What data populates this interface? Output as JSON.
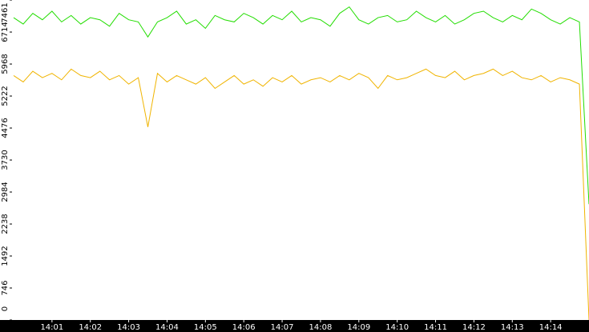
{
  "chart_data": {
    "type": "line",
    "x": [
      840,
      840.25,
      840.5,
      840.75,
      841,
      841.25,
      841.5,
      841.75,
      842,
      842.25,
      842.5,
      842.75,
      843,
      843.25,
      843.5,
      843.75,
      844,
      844.25,
      844.5,
      844.75,
      845,
      845.25,
      845.5,
      845.75,
      846,
      846.25,
      846.5,
      846.75,
      847,
      847.25,
      847.5,
      847.75,
      848,
      848.25,
      848.5,
      848.75,
      849,
      849.25,
      849.5,
      849.75,
      850,
      850.25,
      850.5,
      850.75,
      851,
      851.25,
      851.5,
      851.75,
      852,
      852.25,
      852.5,
      852.75,
      853,
      853.25,
      853.5,
      853.75,
      854,
      854.25,
      854.5,
      854.75,
      855
    ],
    "series": [
      {
        "color": "#22dd00",
        "values": [
          7050,
          6900,
          7150,
          7000,
          7200,
          6950,
          7100,
          6900,
          7050,
          7000,
          6850,
          7150,
          7000,
          6950,
          6600,
          6950,
          7050,
          7200,
          6900,
          7000,
          6800,
          7100,
          7000,
          6950,
          7150,
          7050,
          6900,
          7100,
          7000,
          7200,
          6950,
          7050,
          7000,
          6850,
          7150,
          7300,
          7000,
          6900,
          7050,
          7100,
          6950,
          7000,
          7200,
          7050,
          6950,
          7100,
          6900,
          7000,
          7150,
          7200,
          7050,
          6950,
          7100,
          7000,
          7250,
          7150,
          7000,
          6900,
          7050,
          6950,
          2700
        ]
      },
      {
        "color": "#f0b400",
        "values": [
          5700,
          5550,
          5800,
          5650,
          5750,
          5600,
          5850,
          5700,
          5650,
          5800,
          5600,
          5700,
          5500,
          5650,
          4500,
          5750,
          5550,
          5700,
          5600,
          5500,
          5650,
          5400,
          5550,
          5700,
          5500,
          5600,
          5450,
          5650,
          5550,
          5700,
          5500,
          5600,
          5650,
          5550,
          5700,
          5600,
          5750,
          5650,
          5400,
          5700,
          5600,
          5650,
          5750,
          5850,
          5700,
          5650,
          5800,
          5600,
          5700,
          5750,
          5850,
          5700,
          5800,
          5650,
          5600,
          5700,
          5550,
          5650,
          5600,
          5500,
          0
        ]
      }
    ],
    "xlim": [
      840,
      855
    ],
    "xticks": [
      {
        "value": 841,
        "label": "14:01"
      },
      {
        "value": 842,
        "label": "14:02"
      },
      {
        "value": 843,
        "label": "14:03"
      },
      {
        "value": 844,
        "label": "14:04"
      },
      {
        "value": 845,
        "label": "14:05"
      },
      {
        "value": 846,
        "label": "14:06"
      },
      {
        "value": 847,
        "label": "14:07"
      },
      {
        "value": 848,
        "label": "14:08"
      },
      {
        "value": 849,
        "label": "14:09"
      },
      {
        "value": 850,
        "label": "14:10"
      },
      {
        "value": 851,
        "label": "14:11"
      },
      {
        "value": 852,
        "label": "14:12"
      },
      {
        "value": 853,
        "label": "14:13"
      },
      {
        "value": 854,
        "label": "14:14"
      }
    ],
    "ylim": [
      0,
      7461
    ],
    "yticks": [
      0,
      746,
      1492,
      2238,
      2984,
      3730,
      4476,
      5222,
      5968,
      6714,
      7461
    ]
  }
}
